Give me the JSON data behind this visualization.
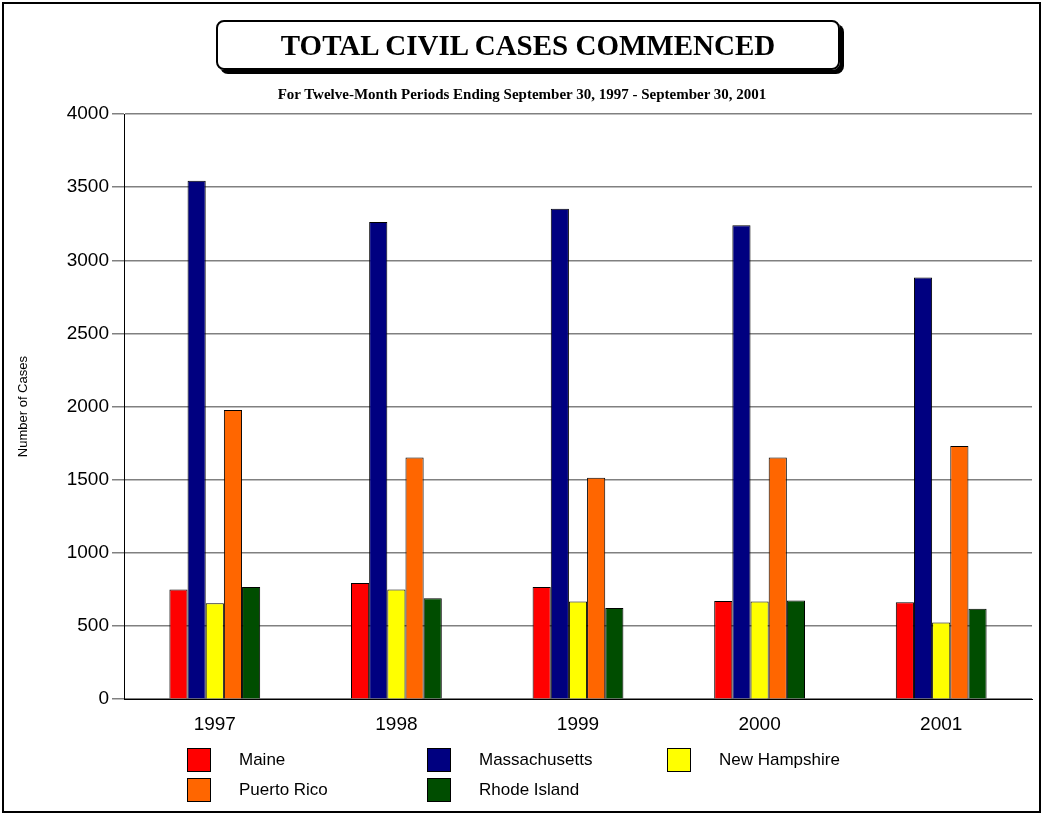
{
  "chart_data": {
    "type": "bar",
    "title": "TOTAL CIVIL CASES COMMENCED",
    "subtitle": "For Twelve-Month Periods Ending September 30, 1997 - September 30, 2001",
    "ylabel": "Number of Cases",
    "categories": [
      "1997",
      "1998",
      "1999",
      "2000",
      "2001"
    ],
    "series": [
      {
        "name": "Maine",
        "color": "#ff0000",
        "values": [
          750,
          795,
          767,
          671,
          662
        ]
      },
      {
        "name": "Massachusetts",
        "color": "#000080",
        "values": [
          3543,
          3262,
          3352,
          3240,
          2883
        ]
      },
      {
        "name": "New Hampshire",
        "color": "#ffff00",
        "values": [
          655,
          750,
          667,
          667,
          524
        ]
      },
      {
        "name": "Puerto Rico",
        "color": "#ff6600",
        "values": [
          1976,
          1652,
          1514,
          1652,
          1731
        ]
      },
      {
        "name": "Rhode Island",
        "color": "#004d00",
        "values": [
          767,
          690,
          624,
          674,
          619
        ]
      }
    ],
    "ylim": [
      0,
      4000
    ],
    "yticks": [
      0,
      500,
      1000,
      1500,
      2000,
      2500,
      3000,
      3500,
      4000
    ],
    "grid": "y",
    "legend": "bottom"
  }
}
